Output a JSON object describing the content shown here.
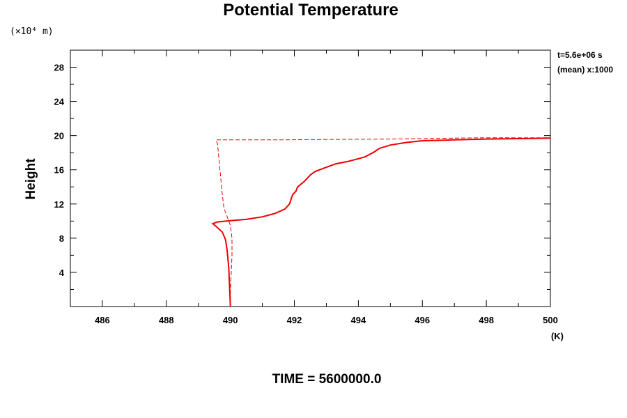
{
  "chart_data": {
    "type": "line",
    "title": "Potential Temperature",
    "ylabel": "Height",
    "y_unit_label": "(×10⁴ m)",
    "x_unit_label": "(K)",
    "xlim": [
      485,
      500
    ],
    "ylim": [
      0,
      30
    ],
    "x_ticks": [
      "486",
      "488",
      "490",
      "492",
      "494",
      "496",
      "498",
      "500"
    ],
    "y_ticks": [
      "4",
      "8",
      "12",
      "16",
      "20",
      "24",
      "28"
    ],
    "info_lines": [
      "t=5.6e+06 s",
      "(mean) x:1000"
    ],
    "bottom_label": "TIME = 5600000.0",
    "line_color": "#ee0000",
    "series": [
      {
        "style": "solid",
        "points": [
          [
            490.0,
            0.0
          ],
          [
            489.98,
            2.0
          ],
          [
            489.95,
            4.5
          ],
          [
            489.9,
            6.5
          ],
          [
            489.85,
            7.8
          ],
          [
            489.75,
            8.7
          ],
          [
            489.55,
            9.4
          ],
          [
            489.45,
            9.7
          ],
          [
            489.6,
            9.9
          ],
          [
            490.0,
            10.05
          ],
          [
            490.5,
            10.2
          ],
          [
            491.0,
            10.5
          ],
          [
            491.4,
            10.9
          ],
          [
            491.7,
            11.4
          ],
          [
            491.85,
            12.0
          ],
          [
            491.9,
            12.6
          ],
          [
            491.95,
            13.1
          ],
          [
            492.05,
            13.5
          ],
          [
            492.1,
            14.0
          ],
          [
            492.3,
            14.6
          ],
          [
            492.5,
            15.4
          ],
          [
            492.65,
            15.8
          ],
          [
            493.0,
            16.3
          ],
          [
            493.3,
            16.7
          ],
          [
            493.7,
            17.0
          ],
          [
            494.2,
            17.5
          ],
          [
            494.5,
            18.1
          ],
          [
            494.65,
            18.5
          ],
          [
            495.0,
            18.9
          ],
          [
            495.5,
            19.2
          ],
          [
            496.0,
            19.4
          ],
          [
            497.0,
            19.5
          ],
          [
            498.0,
            19.6
          ],
          [
            499.0,
            19.65
          ],
          [
            500.0,
            19.7
          ]
        ]
      },
      {
        "style": "dashed",
        "points": [
          [
            490.0,
            0.0
          ],
          [
            490.0,
            2.0
          ],
          [
            490.03,
            4.0
          ],
          [
            490.05,
            6.0
          ],
          [
            490.05,
            8.0
          ],
          [
            490.0,
            9.5
          ],
          [
            489.9,
            10.5
          ],
          [
            489.8,
            11.5
          ],
          [
            489.75,
            13.0
          ],
          [
            489.7,
            15.0
          ],
          [
            489.65,
            17.0
          ],
          [
            489.6,
            19.0
          ],
          [
            489.55,
            19.5
          ],
          [
            491.5,
            19.5
          ],
          [
            493.0,
            19.55
          ],
          [
            495.0,
            19.6
          ],
          [
            497.0,
            19.7
          ],
          [
            498.0,
            19.75
          ],
          [
            499.0,
            19.75
          ],
          [
            500.0,
            19.75
          ]
        ]
      }
    ]
  }
}
